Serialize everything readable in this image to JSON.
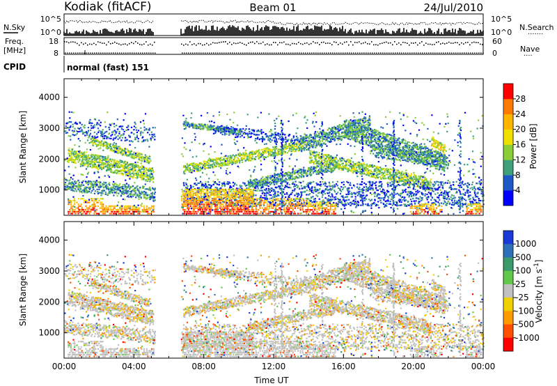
{
  "header": {
    "station": "Kodiak (fitACF)",
    "beam": "Beam 01",
    "date": "24/Jul/2010"
  },
  "top_panels": {
    "noise": {
      "left_label": "N.Sky",
      "left_ticks": [
        "10^5",
        "10^0"
      ],
      "right_ticks": [
        "10^5",
        "10^0"
      ],
      "right_label": "N.Search",
      "right_label_dots": "·······"
    },
    "frequency": {
      "left_label_1": "Freq.",
      "left_label_2": "[MHz]",
      "left_ticks": [
        "18",
        "8"
      ],
      "right_ticks": [
        "60",
        "0"
      ],
      "right_label": "Nave",
      "right_label_dots": "····"
    },
    "cpid": {
      "label": "CPID",
      "mode": "normal (fast) 151"
    }
  },
  "data_gaps_hours": [
    [
      5.17,
      6.67
    ]
  ],
  "chart_data": [
    {
      "type": "heatmap",
      "name": "power",
      "ylabel": "Slant Range [km]",
      "ylim": [
        180,
        4600
      ],
      "yticks": [
        1000,
        2000,
        3000,
        4000
      ],
      "xlim": [
        0,
        24
      ],
      "colorbar": {
        "label": "Power [dB]",
        "ticks": [
          4,
          8,
          12,
          16,
          20,
          24,
          28
        ],
        "tick_labels": [
          "4",
          "8",
          "12",
          "16",
          "20",
          "24",
          "28"
        ],
        "colors": [
          "#0000ff",
          "#1e58c8",
          "#3da07a",
          "#8acf38",
          "#f0e000",
          "#ffb400",
          "#ff7a00",
          "#ff0000"
        ],
        "range": [
          0,
          32
        ]
      }
    },
    {
      "type": "heatmap",
      "name": "velocity",
      "ylabel": "Slant Range [km]",
      "ylim": [
        180,
        4600
      ],
      "yticks": [
        1000,
        2000,
        3000,
        4000
      ],
      "xlim": [
        0,
        24
      ],
      "xlabel": "Time UT",
      "xticks": [
        "00:00",
        "04:00",
        "08:00",
        "12:00",
        "16:00",
        "20:00",
        "00:00"
      ],
      "colorbar": {
        "label": "Velocity [m s^-1]",
        "tick_labels": [
          "1000",
          "500",
          "100",
          "25",
          "-25",
          "-100",
          "-500",
          "-1000"
        ],
        "colors": [
          "#1a3ad8",
          "#2e6fb8",
          "#3a9a6a",
          "#62c84a",
          "#c0c0c0",
          "#f0d000",
          "#ff9a00",
          "#ff5000",
          "#ff0000"
        ]
      }
    }
  ],
  "colors": {
    "axes": "#000000",
    "background": "#ffffff"
  }
}
